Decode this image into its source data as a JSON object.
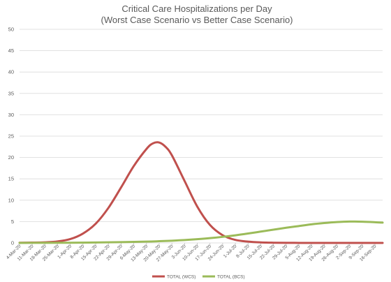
{
  "chart_data": {
    "type": "line",
    "title": "Critical Care Hospitalizations per Day",
    "subtitle": "(Worst Case Scenario vs Better Case Scenario)",
    "xlabel": "",
    "ylabel": "",
    "ylim": [
      0,
      50
    ],
    "yticks": [
      0,
      5,
      10,
      15,
      20,
      25,
      30,
      35,
      40,
      45,
      50
    ],
    "grid": true,
    "legend": "bottom",
    "categories": [
      "4-Mar-20",
      "11-Mar-20",
      "18-Mar-20",
      "25-Mar-20",
      "1-Apr-20",
      "8-Apr-20",
      "15-Apr-20",
      "22-Apr-20",
      "29-Apr-20",
      "6-May-20",
      "13-May-20",
      "20-May-20",
      "27-May-20",
      "3-Jun-20",
      "10-Jun-20",
      "17-Jun-20",
      "24-Jun-20",
      "1-Jul-20",
      "8-Jul-20",
      "15-Jul-20",
      "22-Jul-20",
      "29-Jul-20",
      "5-Aug-20",
      "12-Aug-20",
      "19-Aug-20",
      "26-Aug-20",
      "2-Sep-20",
      "9-Sep-20",
      "16-Sep-20"
    ],
    "x_end": 28.6,
    "series": [
      {
        "name": "TOTAL (WCS)",
        "color": "#c0504d",
        "x": [
          0,
          1,
          2,
          3,
          4,
          5,
          6,
          7,
          8,
          9,
          10,
          10.5,
          11,
          11.5,
          12,
          13,
          14,
          15,
          16,
          17,
          18,
          19,
          20,
          21,
          22,
          23,
          24,
          25,
          26,
          27,
          28,
          28.6
        ],
        "values": [
          0.05,
          0.08,
          0.15,
          0.35,
          0.9,
          2.2,
          4.5,
          8.2,
          13.0,
          18.0,
          22.0,
          23.3,
          23.5,
          22.5,
          20.5,
          14.5,
          8.5,
          4.2,
          1.8,
          0.7,
          0.3,
          0.12,
          0.05,
          0.02,
          0.01,
          0,
          0,
          0,
          0,
          0,
          0,
          0
        ]
      },
      {
        "name": "TOTAL (BCS)",
        "color": "#9bbb59",
        "x": [
          0,
          2,
          4,
          6,
          8,
          10,
          11,
          12,
          13,
          14,
          15,
          16,
          17,
          18,
          19,
          20,
          21,
          22,
          23,
          24,
          25,
          26,
          27,
          28,
          28.6
        ],
        "values": [
          0,
          0.02,
          0.05,
          0.1,
          0.18,
          0.3,
          0.4,
          0.52,
          0.68,
          0.88,
          1.12,
          1.42,
          1.78,
          2.2,
          2.65,
          3.1,
          3.55,
          3.95,
          4.35,
          4.65,
          4.88,
          5.0,
          4.97,
          4.85,
          4.75
        ]
      }
    ]
  }
}
